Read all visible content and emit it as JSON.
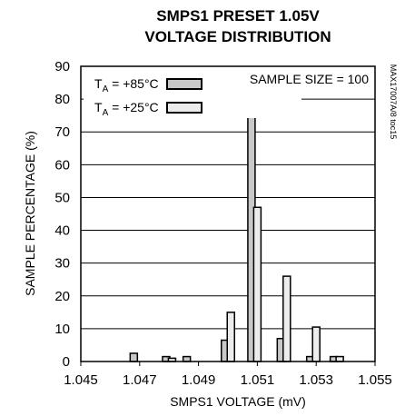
{
  "chart_data": {
    "type": "bar",
    "title_line1": "SMPS1 PRESET 1.05V",
    "title_line2": "VOLTAGE DISTRIBUTION",
    "xlabel": "SMPS1 VOLTAGE (mV)",
    "ylabel": "SAMPLE PERCENTAGE (%)",
    "xlim": [
      1.045,
      1.055
    ],
    "ylim": [
      0,
      90
    ],
    "xticks": [
      "1.045",
      "1.047",
      "1.049",
      "1.051",
      "1.053",
      "1.055"
    ],
    "yticks": [
      "0",
      "10",
      "20",
      "30",
      "40",
      "50",
      "60",
      "70",
      "80",
      "90"
    ],
    "grid": "horizontal",
    "sample_note": "SAMPLE SIZE = 100",
    "figure_id": "MAX17007A/8 toc15",
    "series": [
      {
        "legend_main": "T",
        "legend_sub": "A",
        "legend_rest": " = +85°C",
        "color": "#c8c8c8",
        "points": [
          {
            "x": 1.0468,
            "y": 2.5
          },
          {
            "x": 1.0479,
            "y": 1.5
          },
          {
            "x": 1.0486,
            "y": 1.5
          },
          {
            "x": 1.0499,
            "y": 6.5
          },
          {
            "x": 1.0508,
            "y": 77.5
          },
          {
            "x": 1.0518,
            "y": 7.0
          },
          {
            "x": 1.0528,
            "y": 1.5
          },
          {
            "x": 1.0536,
            "y": 1.5
          }
        ]
      },
      {
        "legend_main": "T",
        "legend_sub": "A",
        "legend_rest": " = +25°C",
        "color": "#ececec",
        "points": [
          {
            "x": 1.0481,
            "y": 1.0
          },
          {
            "x": 1.0501,
            "y": 15.0
          },
          {
            "x": 1.051,
            "y": 47.0
          },
          {
            "x": 1.052,
            "y": 26.0
          },
          {
            "x": 1.053,
            "y": 10.5
          },
          {
            "x": 1.0538,
            "y": 1.5
          }
        ]
      }
    ]
  }
}
